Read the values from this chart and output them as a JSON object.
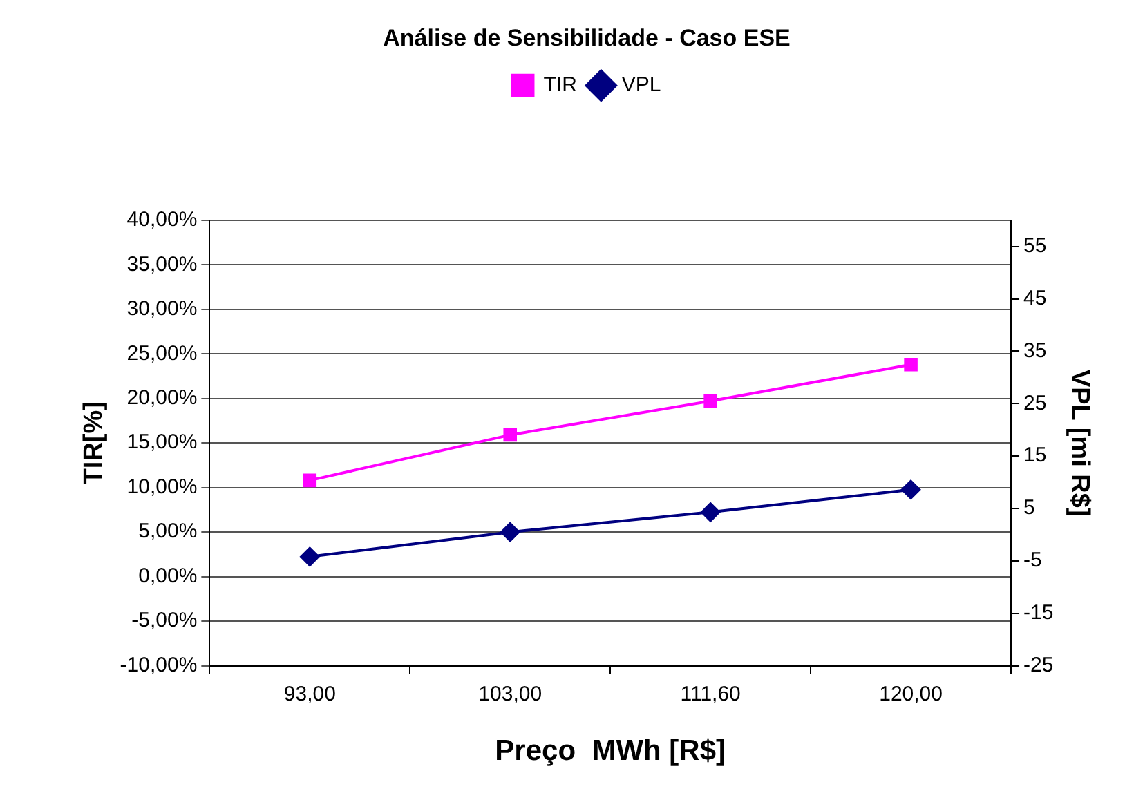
{
  "chart_data": {
    "type": "line",
    "title": "Análise de Sensibilidade - Caso ESE",
    "xlabel": "Preço  MWh [R$]",
    "ylabel": "TIR[%]",
    "y2label": "VPL [mi R$]",
    "categories": [
      "93,00",
      "103,00",
      "111,60",
      "120,00"
    ],
    "series": [
      {
        "name": "TIR",
        "color": "#ff00ff",
        "marker": "square",
        "axis": "y",
        "values": [
          10.8,
          15.9,
          19.7,
          23.8
        ]
      },
      {
        "name": "VPL",
        "color": "#000080",
        "marker": "diamond",
        "axis": "y2",
        "values": [
          -4.2,
          0.5,
          4.3,
          8.6
        ]
      }
    ],
    "ylim": [
      -10,
      40
    ],
    "yticks": [
      {
        "value": -10,
        "label": "-10,00%"
      },
      {
        "value": -5,
        "label": "-5,00%"
      },
      {
        "value": 0,
        "label": "0,00%"
      },
      {
        "value": 5,
        "label": "5,00%"
      },
      {
        "value": 10,
        "label": "10,00%"
      },
      {
        "value": 15,
        "label": "15,00%"
      },
      {
        "value": 20,
        "label": "20,00%"
      },
      {
        "value": 25,
        "label": "25,00%"
      },
      {
        "value": 30,
        "label": "30,00%"
      },
      {
        "value": 35,
        "label": "35,00%"
      },
      {
        "value": 40,
        "label": "40,00%"
      }
    ],
    "y2lim": [
      -25,
      60
    ],
    "y2ticks": [
      -25,
      -15,
      -5,
      5,
      15,
      25,
      35,
      45,
      55
    ],
    "grid": "y",
    "legend": "top",
    "line_style": "solid"
  }
}
